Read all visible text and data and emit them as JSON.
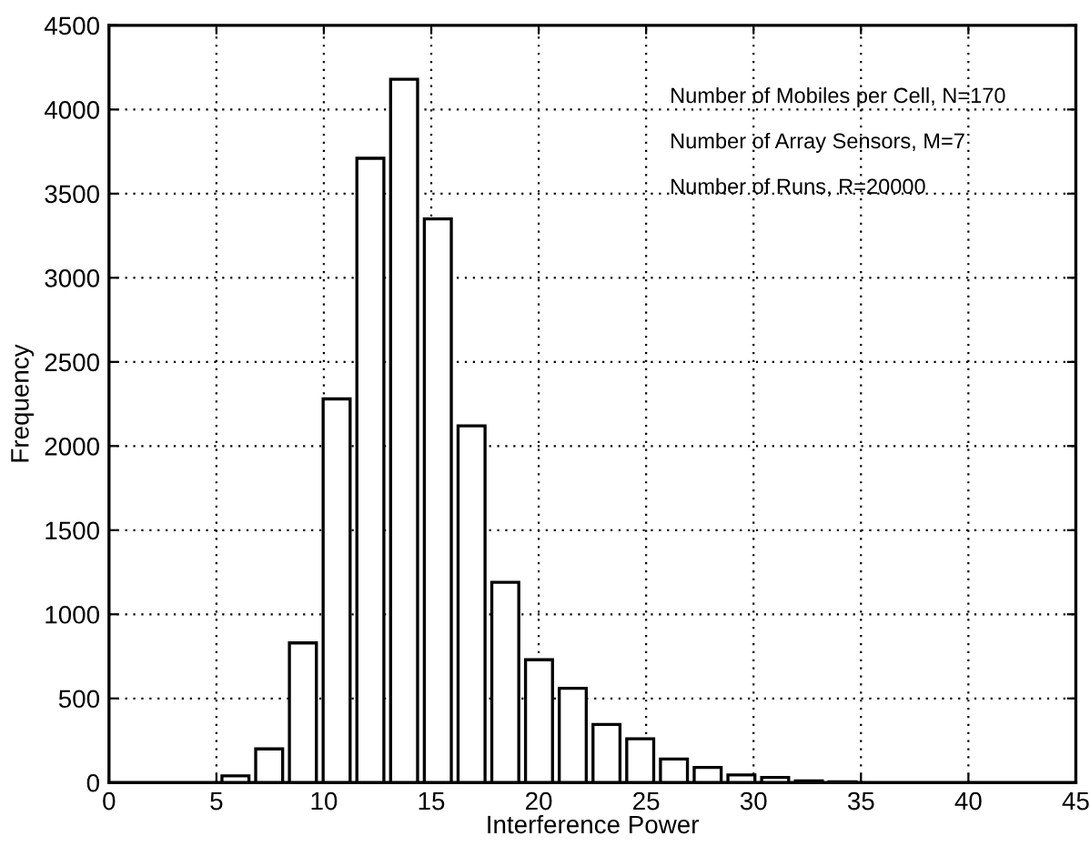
{
  "chart_data": {
    "type": "histogram",
    "xlabel": "Interference Power",
    "ylabel": "Frequency",
    "bins": [
      5.1,
      6.67,
      8.24,
      9.81,
      11.38,
      12.95,
      14.52,
      16.09,
      17.66,
      19.23,
      20.8,
      22.37,
      23.94,
      25.51,
      27.08,
      28.65,
      30.22,
      31.79,
      33.36,
      34.93
    ],
    "values": [
      40,
      200,
      830,
      2280,
      3710,
      4180,
      3350,
      2120,
      1190,
      730,
      560,
      345,
      260,
      140,
      90,
      45,
      30,
      10,
      5
    ],
    "color": "#ffffff",
    "xlim": [
      0,
      45
    ],
    "xticks": [
      0,
      5,
      10,
      15,
      20,
      25,
      30,
      35,
      40,
      45
    ],
    "ylim": [
      0,
      4500
    ],
    "yticks": [
      0,
      500,
      1000,
      1500,
      2000,
      2500,
      3000,
      3500,
      4000,
      4500
    ],
    "grid": true,
    "annotations": [
      "Number of Mobiles per Cell, N=170",
      "Number of Array Sensors, M=7",
      "Number of Runs, R=20000"
    ]
  }
}
